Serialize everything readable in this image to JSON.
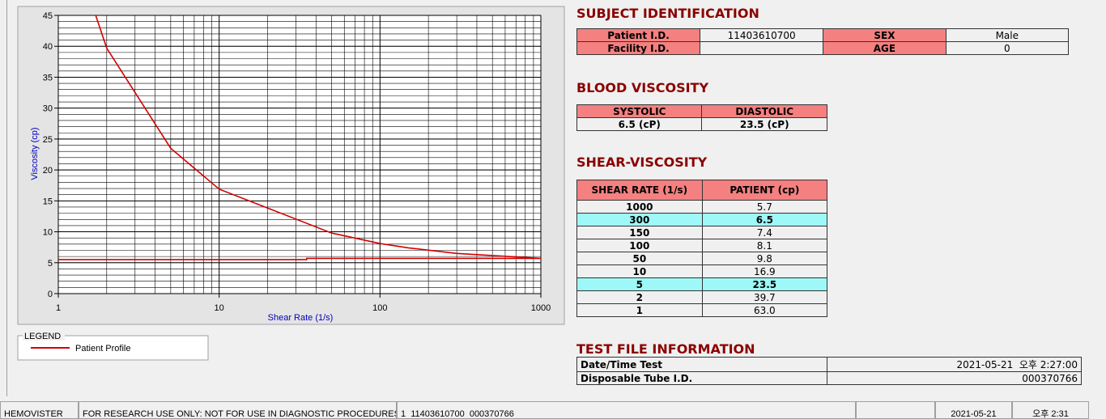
{
  "chart_data": {
    "type": "line",
    "xlabel": "Shear Rate (1/s)",
    "ylabel": "Viscosity (cp)",
    "xlog": true,
    "xlim": [
      1,
      1000
    ],
    "xticks": [
      1,
      10,
      100,
      1000
    ],
    "ylim": [
      0,
      45
    ],
    "yticks": [
      0,
      5,
      10,
      15,
      20,
      25,
      30,
      35,
      40,
      45
    ],
    "grid": true,
    "legend_title": "LEGEND",
    "series": [
      {
        "name": "Patient Profile",
        "color": "#d40000",
        "x": [
          1,
          2,
          5,
          10,
          50,
          100,
          150,
          300,
          1000
        ],
        "values": [
          63.0,
          39.7,
          23.5,
          16.9,
          9.8,
          8.1,
          7.4,
          6.5,
          5.7
        ]
      },
      {
        "color": "#d40000",
        "x": [
          1,
          35,
          35,
          1000
        ],
        "values": [
          5.5,
          5.5,
          5.7,
          5.7
        ]
      }
    ]
  },
  "subject": {
    "title": "SUBJECT IDENTIFICATION",
    "rows": [
      [
        "Patient I.D.",
        "11403610700",
        "SEX",
        "Male"
      ],
      [
        "Facility I.D.",
        null,
        "AGE",
        "0"
      ]
    ]
  },
  "blood_viscosity": {
    "title": "BLOOD VISCOSITY",
    "headers": [
      "SYSTOLIC",
      "DIASTOLIC"
    ],
    "values": [
      "6.5 (cP)",
      "23.5 (cP)"
    ]
  },
  "shear_viscosity": {
    "title": "SHEAR-VISCOSITY",
    "headers": [
      "SHEAR RATE (1/s)",
      "PATIENT (cp)"
    ],
    "highlight": [
      1,
      6
    ],
    "highlight_color": "#9ff8f8",
    "rows": [
      [
        "1000",
        "5.7"
      ],
      [
        "300",
        "6.5"
      ],
      [
        "150",
        "7.4"
      ],
      [
        "100",
        "8.1"
      ],
      [
        "50",
        "9.8"
      ],
      [
        "10",
        "16.9"
      ],
      [
        "5",
        "23.5"
      ],
      [
        "2",
        "39.7"
      ],
      [
        "1",
        "63.0"
      ]
    ]
  },
  "test_file": {
    "title": "TEST FILE INFORMATION",
    "rows": [
      [
        "Date/Time Test",
        "2021-05-21  오후 2:27:00"
      ],
      [
        "Disposable Tube I.D.",
        "000370766"
      ]
    ]
  },
  "status_bar": [
    "HEMOVISTER",
    "FOR RESEARCH USE ONLY: NOT FOR USE IN DIAGNOSTIC PROCEDURES",
    "1  11403610700  000370766",
    "2021-05-21",
    "오후 2:31"
  ]
}
